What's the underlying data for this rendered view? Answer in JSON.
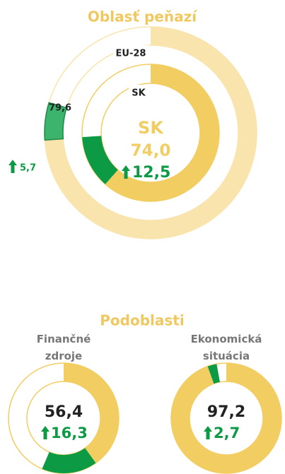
{
  "chart_data": [
    {
      "type": "nested-donut",
      "title": "Oblasť peňazí",
      "ylim": [
        0,
        100
      ],
      "series": [
        {
          "name": "EU-28",
          "values": [
            79.6
          ],
          "value_labels": [
            "79,6"
          ],
          "changes": [
            5.7
          ],
          "change_labels": [
            "5,7"
          ],
          "color": "#f9e4ad",
          "change_color": "#3db46d"
        },
        {
          "name": "SK",
          "values": [
            74.0
          ],
          "value_labels": [
            "74,0"
          ],
          "changes": [
            12.5
          ],
          "change_labels": [
            "12,5"
          ],
          "color": "#f2cd62",
          "change_color": "#0c9a45"
        }
      ]
    },
    {
      "type": "donut",
      "title": "Podoblasti",
      "ylim": [
        0,
        100
      ],
      "categories": [
        "Finančné zdroje",
        "Ekonomická situácia"
      ],
      "values": [
        56.4,
        97.2
      ],
      "value_labels": [
        "56,4",
        "97,2"
      ],
      "changes": [
        16.3,
        2.7
      ],
      "change_labels": [
        "16,3",
        "2,7"
      ],
      "color": "#f2cd62",
      "change_color": "#0c9a45"
    }
  ]
}
